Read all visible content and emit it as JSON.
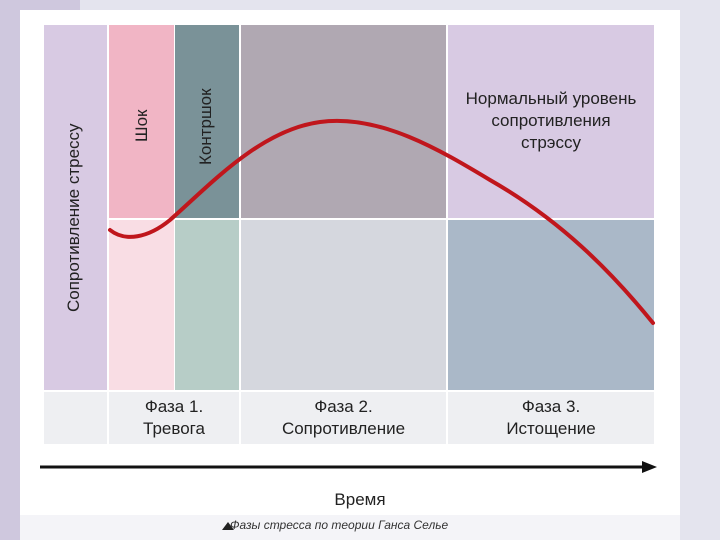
{
  "y_axis_label": "Сопротивление стрессу",
  "shock_label": "Шок",
  "countershock_label": "Контршок",
  "normal_level": {
    "line1": "Нормальный уровень",
    "line2": "сопротивления",
    "line3": "стрэссу"
  },
  "phases": [
    {
      "line1": "Фаза 1.",
      "line2": "Тревога"
    },
    {
      "line1": "Фаза 2.",
      "line2": "Сопротивление"
    },
    {
      "line1": "Фаза 3.",
      "line2": "Истощение"
    }
  ],
  "time_label": "Время",
  "figure_caption": "Фазы стресса по теории Ганса Селье",
  "colors": {
    "curve": "#c0161c",
    "y_axis_band": "#d8cae3",
    "shock_top": "#f1b5c5",
    "shock_bottom": "#f9dde4",
    "countershock_top": "#7a9298",
    "countershock_bottom": "#b7cdc7",
    "phase2_top": "#b0a8b2",
    "phase2_bottom": "#d5d7de",
    "phase3_top": "#d8cae3",
    "phase3_bottom": "#aab8c8"
  }
}
